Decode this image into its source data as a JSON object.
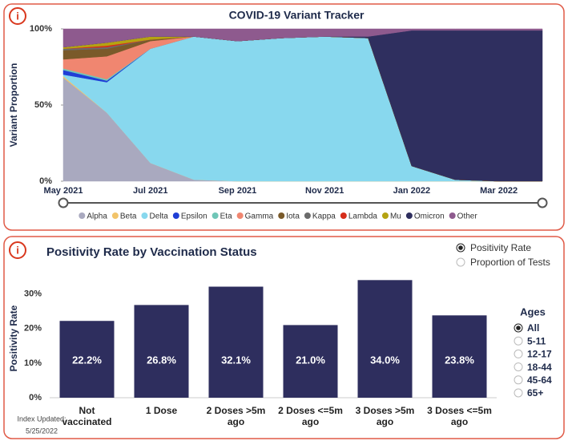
{
  "info_icon": "i",
  "chart_data": [
    {
      "type": "area",
      "stacked": true,
      "title": "COVID-19 Variant Tracker",
      "y_label": "Variant Proportion",
      "x": [
        "May 2021",
        null,
        "Jul 2021",
        null,
        "Sep 2021",
        null,
        "Nov 2021",
        null,
        "Jan 2022",
        null,
        "Mar 2022",
        null
      ],
      "ylim": [
        0,
        100
      ],
      "yticks": [
        {
          "value": 0,
          "label": "0%"
        },
        {
          "value": 50,
          "label": "50%"
        },
        {
          "value": 100,
          "label": "100%"
        }
      ],
      "legend": "bottom",
      "series": [
        {
          "name": "Alpha",
          "color": "#a9a9bf",
          "values": [
            68,
            45,
            12,
            1,
            0,
            0,
            0,
            0,
            0,
            0,
            0,
            0
          ]
        },
        {
          "name": "Beta",
          "color": "#f2c46a",
          "values": [
            1,
            0,
            0,
            0,
            0,
            0,
            0,
            0,
            0,
            0,
            0,
            0
          ]
        },
        {
          "name": "Delta",
          "color": "#88d8ee",
          "values": [
            1,
            20,
            75,
            94,
            92,
            94,
            95,
            94,
            10,
            1,
            0,
            0
          ]
        },
        {
          "name": "Epsilon",
          "color": "#1f3ed6",
          "values": [
            3,
            1,
            0,
            0,
            0,
            0,
            0,
            0,
            0,
            0,
            0,
            0
          ]
        },
        {
          "name": "Eta",
          "color": "#6fc6b7",
          "values": [
            1,
            1,
            0,
            0,
            0,
            0,
            0,
            0,
            0,
            0,
            0,
            0
          ]
        },
        {
          "name": "Gamma",
          "color": "#f08670",
          "values": [
            6,
            15,
            5,
            0,
            0,
            0,
            0,
            0,
            0,
            0,
            0,
            0
          ]
        },
        {
          "name": "Iota",
          "color": "#7a5a2a",
          "values": [
            6,
            5,
            1,
            0,
            0,
            0,
            0,
            0,
            0,
            0,
            0,
            0
          ]
        },
        {
          "name": "Kappa",
          "color": "#6b6b6b",
          "values": [
            1,
            1,
            0,
            0,
            0,
            0,
            0,
            0,
            0,
            0,
            0,
            0
          ]
        },
        {
          "name": "Lambda",
          "color": "#d62d1a",
          "values": [
            0,
            1,
            0,
            0,
            0,
            0,
            0,
            0,
            0,
            0,
            0,
            0
          ]
        },
        {
          "name": "Mu",
          "color": "#b5a312",
          "values": [
            1,
            2,
            2,
            0,
            0,
            0,
            0,
            0,
            0,
            0,
            0,
            0
          ]
        },
        {
          "name": "Omicron",
          "color": "#2f2f5f",
          "values": [
            0,
            0,
            0,
            0,
            0,
            0,
            0,
            1,
            89,
            98,
            99,
            99
          ]
        },
        {
          "name": "Other",
          "color": "#8e5a8e",
          "values": [
            12,
            9,
            5,
            5,
            8,
            6,
            5,
            5,
            1,
            1,
            1,
            1
          ]
        }
      ]
    },
    {
      "type": "bar",
      "title": "Positivity Rate by Vaccination Status",
      "y_label": "Positivity Rate",
      "categories": [
        "Not vaccinated",
        "1 Dose",
        "2 Doses >5m ago",
        "2 Doses <=5m ago",
        "3 Doses >5m ago",
        "3 Doses <=5m ago"
      ],
      "values": [
        22.2,
        26.8,
        32.1,
        21.0,
        34.0,
        23.8
      ],
      "value_labels": [
        "22.2%",
        "26.8%",
        "32.1%",
        "21.0%",
        "34.0%",
        "23.8%"
      ],
      "color": "#2e2e5e",
      "ylim": [
        0,
        35
      ],
      "yticks": [
        {
          "value": 0,
          "label": "0%"
        },
        {
          "value": 10,
          "label": "10%"
        },
        {
          "value": 20,
          "label": "20%"
        },
        {
          "value": 30,
          "label": "30%"
        }
      ]
    }
  ],
  "controls": {
    "metric_options": [
      {
        "label": "Positivity Rate",
        "selected": true
      },
      {
        "label": "Proportion of Tests",
        "selected": false
      }
    ],
    "ages": {
      "title": "Ages",
      "options": [
        {
          "label": "All",
          "selected": true
        },
        {
          "label": "5-11",
          "selected": false
        },
        {
          "label": "12-17",
          "selected": false
        },
        {
          "label": "18-44",
          "selected": false
        },
        {
          "label": "45-64",
          "selected": false
        },
        {
          "label": "65+",
          "selected": false
        }
      ]
    }
  },
  "footnote": [
    "Index Updated:",
    "5/25/2022"
  ]
}
